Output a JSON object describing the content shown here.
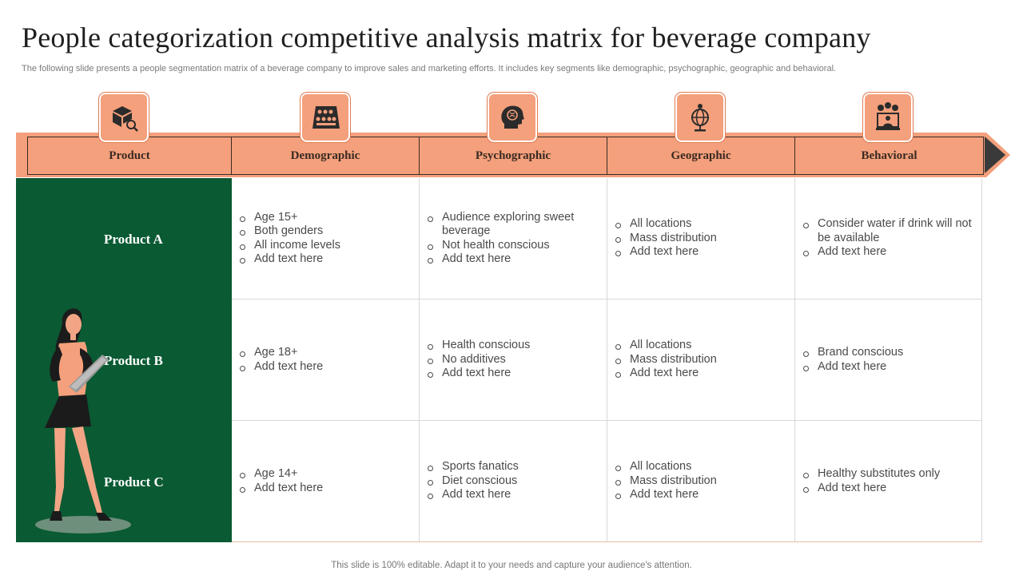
{
  "title": "People categorization competitive analysis matrix for beverage company",
  "subtitle": "The following slide presents a people segmentation matrix of a beverage company to improve sales and marketing efforts. It includes key segments like demographic, psychographic, geographic and behavioral.",
  "header": {
    "columns": [
      {
        "label": "Product",
        "icon": "product-box-icon"
      },
      {
        "label": "Demographic",
        "icon": "audience-icon"
      },
      {
        "label": "Psychographic",
        "icon": "head-brain-icon"
      },
      {
        "label": "Geographic",
        "icon": "globe-pin-icon"
      },
      {
        "label": "Behavioral",
        "icon": "emotions-presenter-icon"
      }
    ]
  },
  "rows": [
    {
      "label": "Product A",
      "cells": [
        [
          "Age 15+",
          "Both genders",
          "All income levels",
          "Add text here"
        ],
        [
          "Audience exploring sweet beverage",
          "Not health conscious",
          "Add text here"
        ],
        [
          "All locations",
          "Mass distribution",
          "Add text here"
        ],
        [
          "Consider water if drink will not be available",
          "Add text here"
        ]
      ]
    },
    {
      "label": "Product B",
      "cells": [
        [
          "Age 18+",
          "Add text here"
        ],
        [
          "Health conscious",
          "No additives",
          "Add text here"
        ],
        [
          "All locations",
          "Mass distribution",
          "Add text here"
        ],
        [
          "Brand conscious",
          "Add text here"
        ]
      ]
    },
    {
      "label": "Product C",
      "cells": [
        [
          "Age 14+",
          "Add text here"
        ],
        [
          "Sports fanatics",
          "Diet conscious",
          "Add text here"
        ],
        [
          "All locations",
          "Mass distribution",
          "Add text here"
        ],
        [
          "Healthy substitutes only",
          "Add text here"
        ]
      ]
    }
  ],
  "footer": "This slide is 100% editable. Adapt it to your needs and capture your audience's attention.",
  "colors": {
    "accent": "#f4a07c",
    "accent_dark": "#e07a52",
    "panel": "#0a5a33",
    "arrow_head": "#3a3a3a"
  }
}
